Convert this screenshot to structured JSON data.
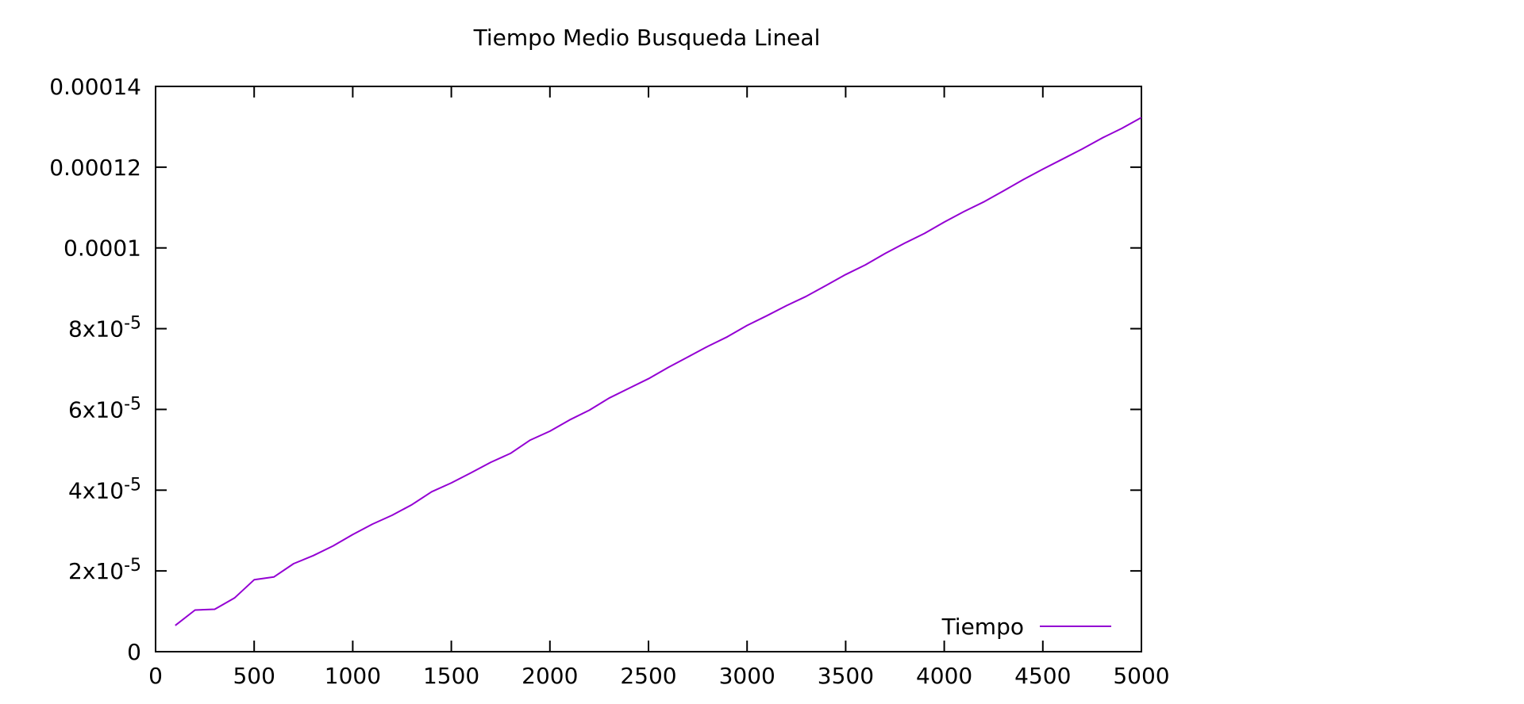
{
  "chart_data": {
    "type": "line",
    "title": "Tiempo Medio Busqueda Lineal",
    "xlabel": "",
    "ylabel": "",
    "xlim": [
      0,
      5000
    ],
    "ylim": [
      0,
      0.00014
    ],
    "grid": false,
    "legend_position": "bottom-right",
    "x_ticks": [
      {
        "value": 0,
        "label": "0"
      },
      {
        "value": 500,
        "label": "500"
      },
      {
        "value": 1000,
        "label": "1000"
      },
      {
        "value": 1500,
        "label": "1500"
      },
      {
        "value": 2000,
        "label": "2000"
      },
      {
        "value": 2500,
        "label": "2500"
      },
      {
        "value": 3000,
        "label": "3000"
      },
      {
        "value": 3500,
        "label": "3500"
      },
      {
        "value": 4000,
        "label": "4000"
      },
      {
        "value": 4500,
        "label": "4500"
      },
      {
        "value": 5000,
        "label": "5000"
      }
    ],
    "y_ticks": [
      {
        "value": 0,
        "base": "0",
        "exp": ""
      },
      {
        "value": 2e-05,
        "base": "2x10",
        "exp": "-5"
      },
      {
        "value": 4e-05,
        "base": "4x10",
        "exp": "-5"
      },
      {
        "value": 6e-05,
        "base": "6x10",
        "exp": "-5"
      },
      {
        "value": 8e-05,
        "base": "8x10",
        "exp": "-5"
      },
      {
        "value": 0.0001,
        "base": "0.0001",
        "exp": ""
      },
      {
        "value": 0.00012,
        "base": "0.00012",
        "exp": ""
      },
      {
        "value": 0.00014,
        "base": "0.00014",
        "exp": ""
      }
    ],
    "series": [
      {
        "name": "Tiempo",
        "color": "#9400d3",
        "x": [
          100,
          200,
          300,
          400,
          500,
          600,
          700,
          800,
          900,
          1000,
          1100,
          1200,
          1300,
          1400,
          1500,
          1600,
          1700,
          1800,
          1900,
          2000,
          2100,
          2200,
          2300,
          2400,
          2500,
          2600,
          2700,
          2800,
          2900,
          3000,
          3100,
          3200,
          3300,
          3400,
          3500,
          3600,
          3700,
          3800,
          3900,
          4000,
          4100,
          4200,
          4300,
          4400,
          4500,
          4600,
          4700,
          4800,
          4900,
          5000
        ],
        "y": [
          6.5e-06,
          1.03e-05,
          1.05e-05,
          1.33e-05,
          1.78e-05,
          1.85e-05,
          2.18e-05,
          2.38e-05,
          2.62e-05,
          2.9e-05,
          3.16e-05,
          3.38e-05,
          3.64e-05,
          3.96e-05,
          4.18e-05,
          4.43e-05,
          4.69e-05,
          4.91e-05,
          5.24e-05,
          5.46e-05,
          5.74e-05,
          5.98e-05,
          6.28e-05,
          6.52e-05,
          6.76e-05,
          7.04e-05,
          7.3e-05,
          7.56e-05,
          7.8e-05,
          8.08e-05,
          8.32e-05,
          8.57e-05,
          8.8e-05,
          9.07e-05,
          9.34e-05,
          9.58e-05,
          9.86e-05,
          0.0001012,
          0.0001036,
          0.0001064,
          0.000109,
          0.0001114,
          0.0001141,
          0.0001169,
          0.0001195,
          0.000122,
          0.0001245,
          0.0001272,
          0.0001296,
          0.0001323
        ]
      }
    ]
  }
}
